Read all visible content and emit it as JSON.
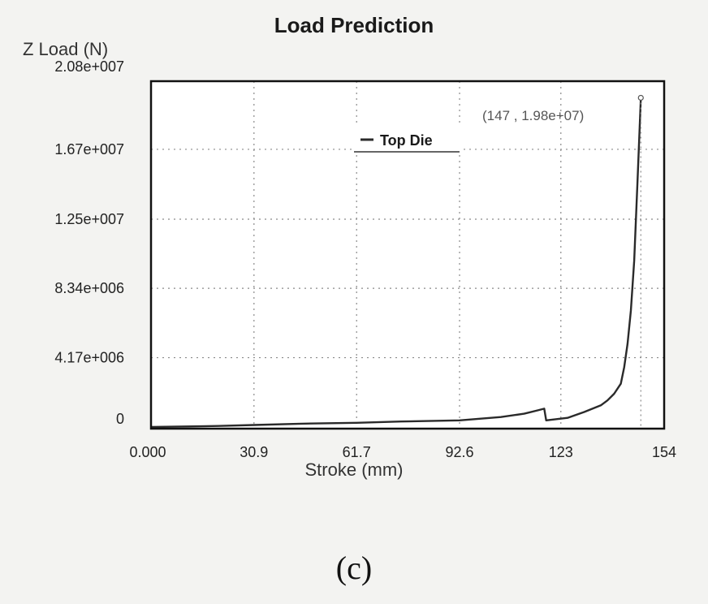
{
  "chart_data": {
    "type": "line",
    "title": "Load Prediction",
    "ylabel": "Z Load (N)",
    "xlabel": "Stroke (mm)",
    "xlim": [
      0,
      154
    ],
    "ylim": [
      -100000,
      20800000
    ],
    "x_ticks": [
      "0.000",
      "30.9",
      "61.7",
      "92.6",
      "123",
      "154"
    ],
    "x_tick_values": [
      0,
      30.9,
      61.7,
      92.6,
      123,
      154
    ],
    "y_ticks": [
      "2.08e+007",
      "1.67e+007",
      "1.25e+007",
      "8.34e+006",
      "4.17e+006",
      "0"
    ],
    "y_tick_values": [
      20800000,
      16700000,
      12500000,
      8340000,
      4170000,
      0
    ],
    "grid": true,
    "legend_position": "top-center",
    "series": [
      {
        "name": "Top Die",
        "x": [
          0,
          20,
          30.9,
          45,
          61.7,
          75,
          92.6,
          105,
          112,
          116,
          118,
          118.6,
          125,
          130,
          135,
          137,
          139,
          141,
          142,
          143,
          144,
          145,
          146,
          147
        ],
        "y": [
          0,
          60000,
          120000,
          200000,
          250000,
          330000,
          400000,
          600000,
          800000,
          1000000,
          1100000,
          400000,
          550000,
          900000,
          1300000,
          1600000,
          2000000,
          2600000,
          3600000,
          5000000,
          7000000,
          10000000,
          14800000,
          19800000
        ]
      }
    ],
    "annotation": "(147 , 1.98e+07)"
  },
  "caption": "(c)",
  "colors": {
    "line": "#2a2a2a",
    "grid": "#8a8a8a",
    "background": "#f3f3f1",
    "plot_bg": "#ffffff"
  }
}
